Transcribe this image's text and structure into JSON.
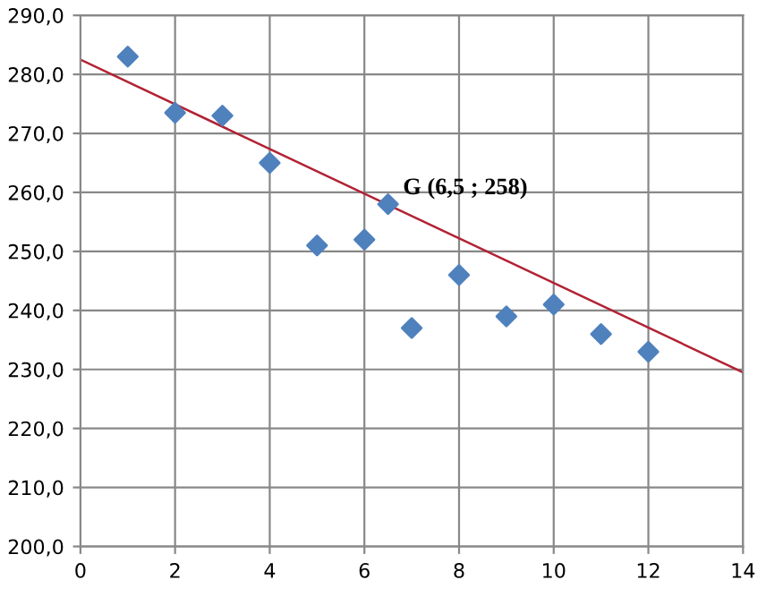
{
  "chart_data": {
    "type": "scatter",
    "grid": true,
    "legend": false,
    "series": [
      {
        "marker": "diamond",
        "color": "#4f81bd",
        "x": [
          1,
          2,
          3,
          4,
          5,
          6,
          6.5,
          7,
          8,
          9,
          10,
          11,
          12
        ],
        "values": [
          283,
          273.5,
          273,
          265,
          251,
          252,
          258,
          237,
          246,
          239,
          241,
          236,
          233
        ]
      },
      {
        "type": "line",
        "marker": "none",
        "color": "#b22234",
        "x": [
          0,
          14
        ],
        "values": [
          282.5,
          229.5
        ]
      }
    ],
    "annotations": [
      {
        "text": "G (6,5 ; 258)",
        "x": 6.5,
        "y": 258
      }
    ],
    "xlim": [
      0,
      14
    ],
    "xticks": [
      0,
      2,
      4,
      6,
      8,
      10,
      12,
      14
    ],
    "ylim": [
      200,
      290
    ],
    "yticks": [
      {
        "value": 200,
        "label": "200,0"
      },
      {
        "value": 210,
        "label": "210,0"
      },
      {
        "value": 220,
        "label": "220,0"
      },
      {
        "value": 230,
        "label": "230,0"
      },
      {
        "value": 240,
        "label": "240,0"
      },
      {
        "value": 250,
        "label": "250,0"
      },
      {
        "value": 260,
        "label": "260,0"
      },
      {
        "value": 270,
        "label": "270,0"
      },
      {
        "value": 280,
        "label": "280,0"
      },
      {
        "value": 290,
        "label": "290,0"
      }
    ]
  }
}
